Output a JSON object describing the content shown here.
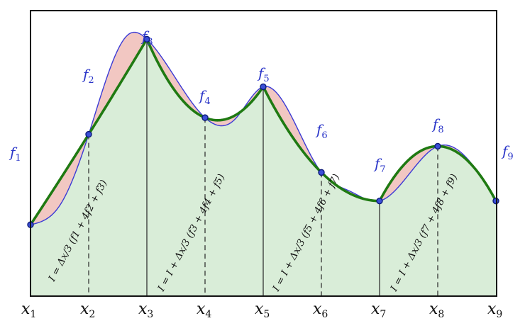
{
  "x_labels": [
    "x1",
    "x2",
    "x3",
    "x4",
    "x5",
    "x6",
    "x7",
    "x8",
    "x9"
  ],
  "f_labels": [
    "f1",
    "f2",
    "f3",
    "f4",
    "f5",
    "f6",
    "f7",
    "f8",
    "f9"
  ],
  "formulas": [
    "I = Δx/3 (f1 + 4f2 + f3)",
    "I = I + Δx/3 (f3 + 4f4 + f5)",
    "I = I + Δx/3 (f5 + 4f6 + f7)",
    "I = I + Δx/3 (f7 + 4f8 + f9)"
  ],
  "colors": {
    "true_curve": "#3b3bd6",
    "parabola": "#1f7a12",
    "under_fill": "#d9edd8",
    "error_fill": "#f2c7c2",
    "point": "#2233bb",
    "label": "#2a35c8"
  },
  "curve_samples": [
    0.3,
    0.68,
    1.08,
    0.75,
    0.88,
    0.52,
    0.4,
    0.63,
    0.4
  ],
  "curve_peak_true": 1.1
}
